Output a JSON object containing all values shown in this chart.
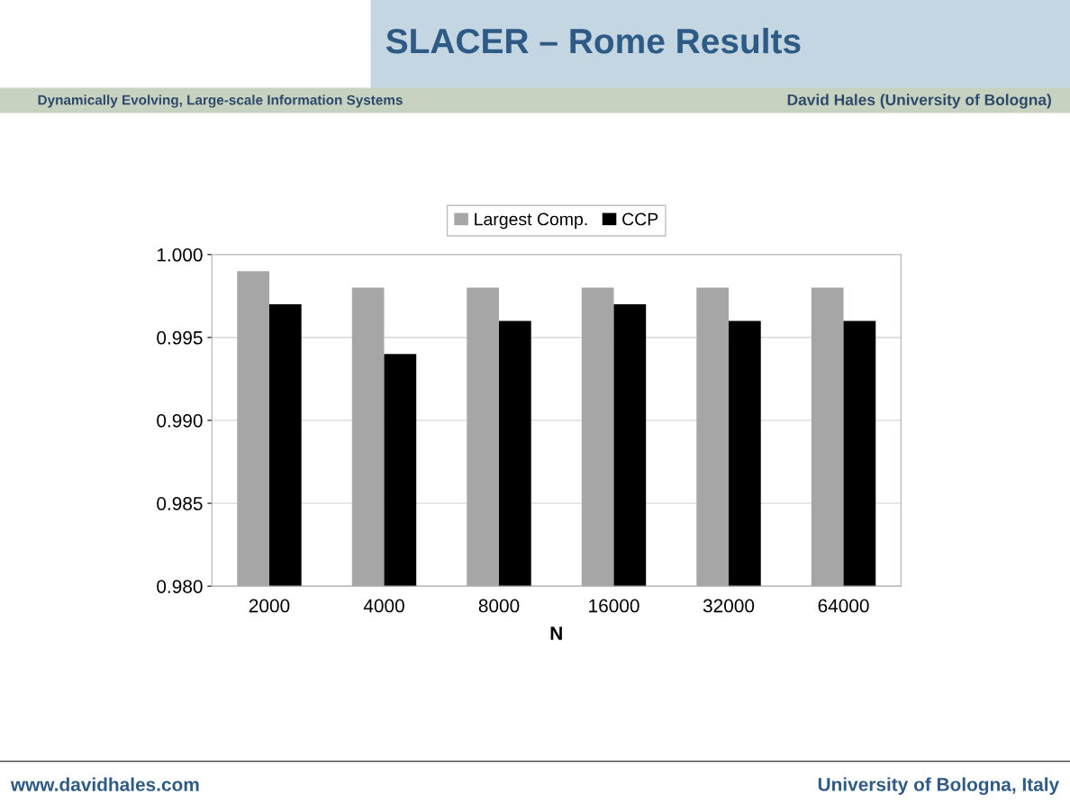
{
  "chart_data": {
    "type": "bar",
    "title": "SLACER – Rome Results",
    "categories": [
      "2000",
      "4000",
      "8000",
      "16000",
      "32000",
      "64000"
    ],
    "series": [
      {
        "name": "Largest Comp.",
        "color": "#a6a6a6",
        "values": [
          0.999,
          0.998,
          0.998,
          0.998,
          0.998,
          0.998
        ]
      },
      {
        "name": "CCP",
        "color": "#000000",
        "values": [
          0.997,
          0.994,
          0.996,
          0.997,
          0.996,
          0.996
        ]
      }
    ],
    "xlabel": "N",
    "ylim": [
      0.98,
      1.0
    ],
    "yticks": [
      {
        "value": 0.98,
        "label": "0.980"
      },
      0.985,
      {
        "value": 0.99,
        "label": "0.990"
      },
      0.995,
      {
        "value": 1.0,
        "label": "1.000"
      }
    ],
    "grid": "y",
    "legend": "top",
    "annotations": [
      "Dynamically Evolving, Large-scale Information Systems",
      "David Hales (University of Bologna)",
      "www.davidhales.com",
      "University of Bologna, Italy"
    ]
  }
}
